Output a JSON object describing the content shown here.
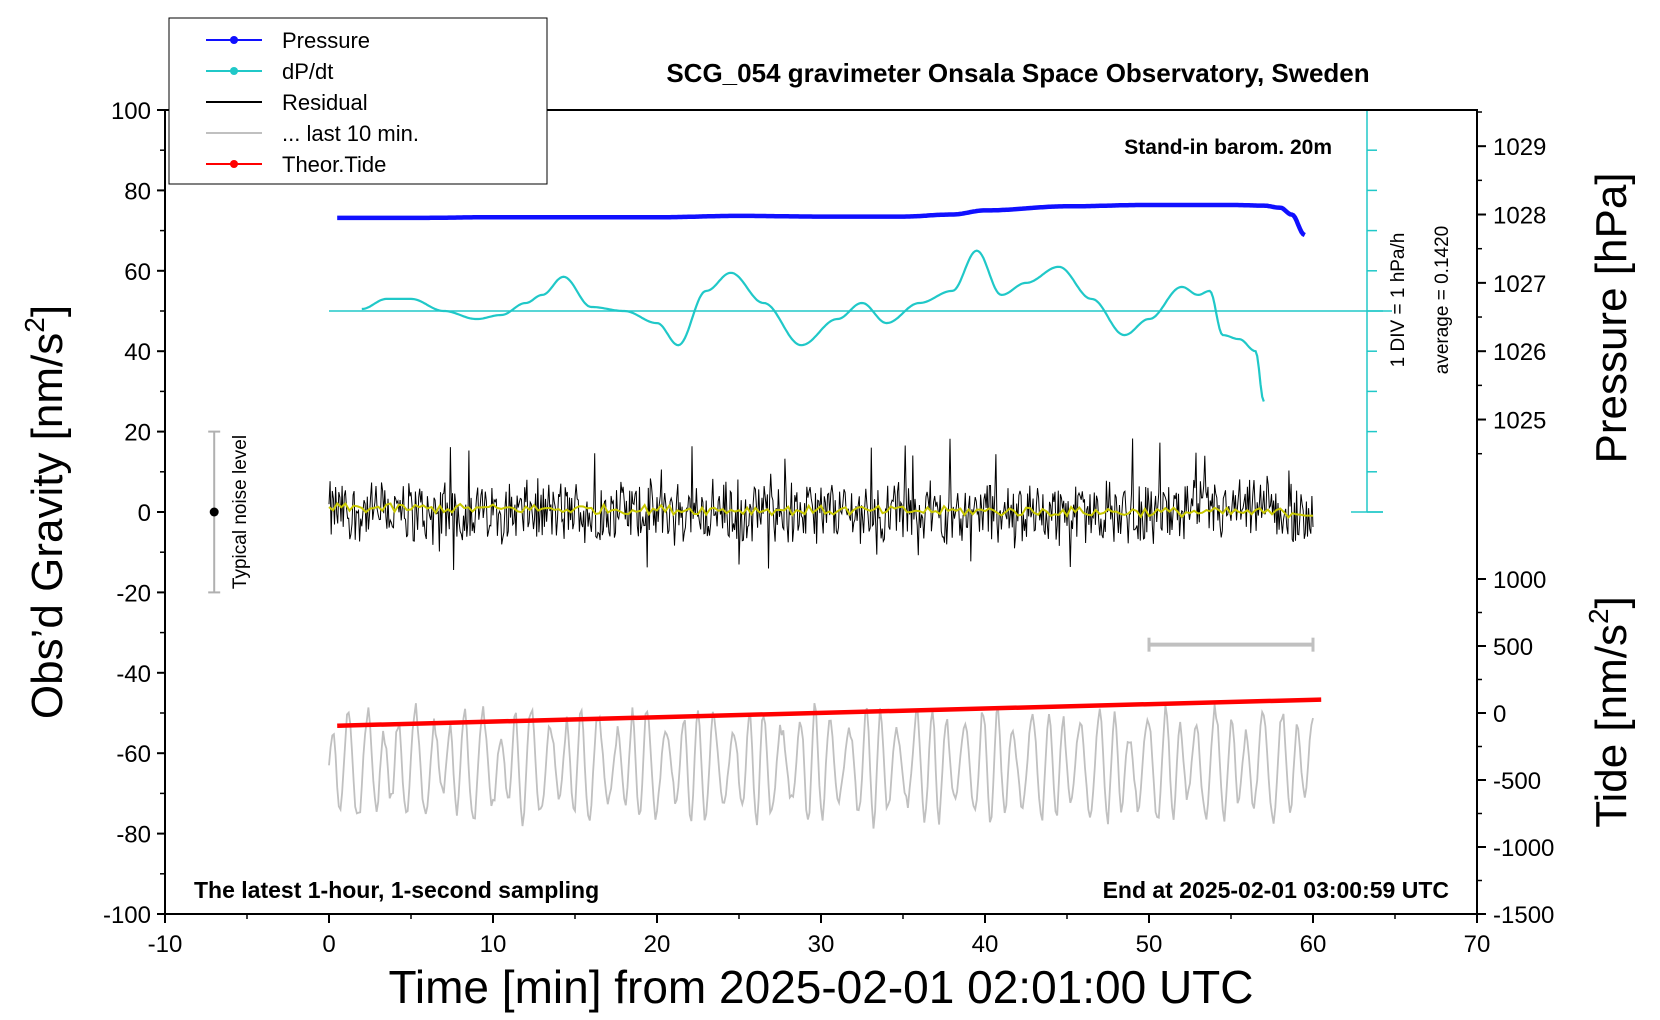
{
  "chart_data": {
    "type": "line",
    "title": "SCG_054 gravimeter Onsala Space Observatory, Sweden",
    "xlabel": "Time [min] from 2025-02-01 02:01:00 UTC",
    "ylabel_left_main": "Obs’d Gravity [nm/s",
    "ylabel_left_sup": "2",
    "ylabel_left_end": "]",
    "ylabel_right_pressure": "Pressure [hPa]",
    "ylabel_right_tide_main": "Tide [nm/s",
    "ylabel_right_tide_sup": "2",
    "ylabel_right_tide_end": "]",
    "xlim": [
      -10,
      70
    ],
    "ylim": [
      -100,
      100
    ],
    "x_ticks": [
      "-10",
      "0",
      "10",
      "20",
      "30",
      "40",
      "50",
      "60",
      "70"
    ],
    "y_ticks": [
      "100",
      "80",
      "60",
      "40",
      "20",
      "0",
      "-20",
      "-40",
      "-60",
      "-80",
      "-100"
    ],
    "pressure_axis": {
      "ticks": [
        "1029",
        "1028",
        "1027",
        "1026",
        "1025"
      ],
      "values": [
        1029,
        1028,
        1027,
        1026,
        1025
      ]
    },
    "tide_axis": {
      "ticks": [
        "1000",
        "500",
        "0",
        "-500",
        "-1000",
        "-1500"
      ],
      "values": [
        1000,
        500,
        0,
        -500,
        -1000,
        -1500
      ]
    },
    "annotations": {
      "baro": "Stand-in barom. 20m",
      "div": "1 DIV = 1 hPa/h",
      "average": "average = 0.1420",
      "noise": "Typical noise level",
      "bottom_left": "The latest 1-hour, 1-second sampling",
      "bottom_right": "End at 2025-02-01 03:00:59 UTC"
    },
    "legend": {
      "placement": "top-left",
      "entries": [
        {
          "label": "Pressure",
          "color": "#1010ff",
          "marker": true
        },
        {
          "label": "dP/dt",
          "color": "#20c8c8",
          "marker": true
        },
        {
          "label": "Residual",
          "color": "#000000",
          "marker": false
        },
        {
          "label": "... last 10 min.",
          "color": "#c0c0c0",
          "marker": false
        },
        {
          "label": "Theor.Tide",
          "color": "#ff0000",
          "marker": true
        }
      ]
    },
    "series": [
      {
        "name": "Pressure",
        "axis": "pressure_hPa",
        "color": "#1010ff",
        "x": [
          0.5,
          5,
          10,
          15,
          20,
          25,
          30,
          35,
          38,
          40,
          45,
          50,
          53,
          55,
          57,
          58,
          58.7,
          59.5
        ],
        "values": [
          1027.95,
          1027.95,
          1027.96,
          1027.96,
          1027.96,
          1027.98,
          1027.97,
          1027.97,
          1028.0,
          1028.06,
          1028.12,
          1028.14,
          1028.14,
          1028.14,
          1028.13,
          1028.1,
          1028.0,
          1027.7
        ]
      },
      {
        "name": "dP/dt",
        "axis": "gravity_units",
        "color": "#20c8c8",
        "x": [
          2,
          3.5,
          5,
          7,
          9,
          10.5,
          12,
          13,
          14.3,
          16,
          18,
          20,
          21.3,
          23,
          24.5,
          26.5,
          28.8,
          31,
          32.5,
          34,
          36,
          38,
          39.5,
          41,
          42.5,
          44.5,
          46.5,
          48.5,
          50,
          52,
          53,
          53.7,
          54.5,
          55.5,
          56.5,
          57
        ],
        "values": [
          50.5,
          53,
          53,
          50,
          48,
          49,
          52,
          54,
          58.5,
          51,
          50,
          47,
          41.5,
          55,
          59.5,
          52,
          41.5,
          48,
          52,
          47,
          52,
          55,
          65,
          54,
          57,
          61,
          53,
          44,
          48,
          56,
          54,
          55,
          44,
          43,
          40,
          27.5
        ]
      },
      {
        "name": "Residual",
        "axis": "gravity",
        "color": "#000000",
        "range_x": [
          0,
          60
        ],
        "typical_range": [
          -15,
          20
        ]
      },
      {
        "name": "Residual smoothed",
        "axis": "gravity",
        "color": "#c8c800",
        "range_x": [
          0,
          60
        ],
        "typical_range": [
          -2,
          2
        ]
      },
      {
        "name": "... last 10 min.",
        "axis": "gravity",
        "color": "#c0c0c0",
        "range_x": [
          0,
          60
        ],
        "center": -63,
        "typical_range": [
          -85,
          -42
        ]
      },
      {
        "name": "Theor.Tide",
        "axis": "tide_nm_s2",
        "color": "#ff0000",
        "x": [
          0.5,
          60.5
        ],
        "values": [
          -95,
          100
        ]
      }
    ],
    "dpdt_zero_line": 50,
    "noise_bar": {
      "x": -7,
      "y_range": [
        -20,
        20
      ]
    },
    "window_bar_x": [
      50,
      60
    ],
    "window_bar_y": -33
  }
}
